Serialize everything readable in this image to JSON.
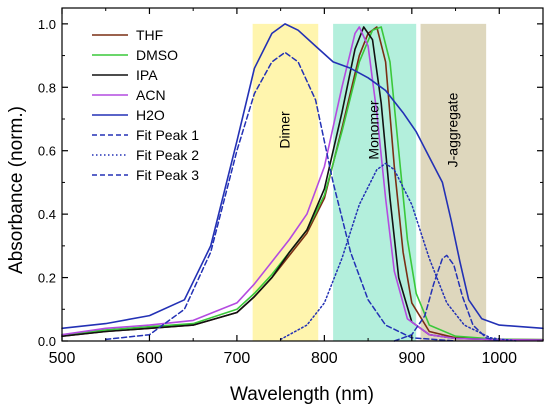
{
  "chart_data": {
    "type": "line",
    "xlabel": "Wavelength (nm)",
    "ylabel": "Absorbance (norm.)",
    "xlim": [
      500,
      1050
    ],
    "ylim": [
      0,
      1.05
    ],
    "xticks": [
      500,
      600,
      700,
      800,
      900,
      1000
    ],
    "xtick_labels": [
      "500",
      "600",
      "700",
      "800",
      "900",
      "1000"
    ],
    "yticks": [
      0,
      0.2,
      0.4,
      0.6,
      0.8,
      1.0
    ],
    "ytick_labels": [
      "0.0",
      "0.2",
      "0.4",
      "0.6",
      "0.8",
      "1.0"
    ],
    "grid": false,
    "legend_position": "top-left",
    "regions": [
      {
        "label": "Dimer",
        "x_range": [
          718,
          793
        ],
        "color": "#fff3a0"
      },
      {
        "label": "Monomer",
        "x_range": [
          810,
          905
        ],
        "color": "#a6ecd6"
      },
      {
        "label": "J-aggregate",
        "x_range": [
          910,
          985
        ],
        "color": "#d8d0b2"
      }
    ],
    "series": [
      {
        "name": "THF",
        "color": "#7a2e14",
        "dash": "solid",
        "points": [
          [
            500,
            0.015
          ],
          [
            550,
            0.03
          ],
          [
            600,
            0.04
          ],
          [
            650,
            0.05
          ],
          [
            700,
            0.09
          ],
          [
            720,
            0.14
          ],
          [
            740,
            0.2
          ],
          [
            760,
            0.27
          ],
          [
            780,
            0.34
          ],
          [
            800,
            0.45
          ],
          [
            820,
            0.67
          ],
          [
            840,
            0.9
          ],
          [
            850,
            0.97
          ],
          [
            860,
            0.99
          ],
          [
            870,
            0.88
          ],
          [
            880,
            0.55
          ],
          [
            890,
            0.28
          ],
          [
            900,
            0.12
          ],
          [
            920,
            0.03
          ],
          [
            950,
            0.01
          ],
          [
            1000,
            0.005
          ],
          [
            1050,
            0.004
          ]
        ]
      },
      {
        "name": "DMSO",
        "color": "#3ac83a",
        "dash": "solid",
        "points": [
          [
            500,
            0.02
          ],
          [
            550,
            0.035
          ],
          [
            600,
            0.045
          ],
          [
            650,
            0.055
          ],
          [
            700,
            0.1
          ],
          [
            720,
            0.15
          ],
          [
            740,
            0.21
          ],
          [
            760,
            0.28
          ],
          [
            780,
            0.35
          ],
          [
            800,
            0.46
          ],
          [
            820,
            0.66
          ],
          [
            840,
            0.88
          ],
          [
            855,
            0.98
          ],
          [
            865,
            0.99
          ],
          [
            875,
            0.88
          ],
          [
            885,
            0.6
          ],
          [
            895,
            0.32
          ],
          [
            905,
            0.15
          ],
          [
            920,
            0.05
          ],
          [
            950,
            0.015
          ],
          [
            1000,
            0.005
          ],
          [
            1050,
            0.004
          ]
        ]
      },
      {
        "name": "IPA",
        "color": "#111111",
        "dash": "solid",
        "points": [
          [
            500,
            0.015
          ],
          [
            550,
            0.03
          ],
          [
            600,
            0.04
          ],
          [
            650,
            0.05
          ],
          [
            700,
            0.09
          ],
          [
            720,
            0.14
          ],
          [
            740,
            0.2
          ],
          [
            760,
            0.28
          ],
          [
            780,
            0.35
          ],
          [
            800,
            0.48
          ],
          [
            820,
            0.72
          ],
          [
            835,
            0.92
          ],
          [
            845,
            0.99
          ],
          [
            855,
            0.95
          ],
          [
            865,
            0.75
          ],
          [
            875,
            0.45
          ],
          [
            885,
            0.2
          ],
          [
            900,
            0.06
          ],
          [
            920,
            0.02
          ],
          [
            950,
            0.008
          ],
          [
            1000,
            0.004
          ],
          [
            1050,
            0.003
          ]
        ]
      },
      {
        "name": "ACN",
        "color": "#b44be0",
        "dash": "solid",
        "points": [
          [
            500,
            0.02
          ],
          [
            550,
            0.04
          ],
          [
            600,
            0.05
          ],
          [
            650,
            0.065
          ],
          [
            700,
            0.12
          ],
          [
            720,
            0.18
          ],
          [
            740,
            0.25
          ],
          [
            760,
            0.32
          ],
          [
            780,
            0.4
          ],
          [
            800,
            0.55
          ],
          [
            820,
            0.8
          ],
          [
            835,
            0.97
          ],
          [
            840,
            0.99
          ],
          [
            850,
            0.93
          ],
          [
            860,
            0.72
          ],
          [
            870,
            0.45
          ],
          [
            880,
            0.22
          ],
          [
            895,
            0.07
          ],
          [
            920,
            0.02
          ],
          [
            950,
            0.008
          ],
          [
            1000,
            0.004
          ],
          [
            1050,
            0.003
          ]
        ]
      },
      {
        "name": "H2O",
        "color": "#2331b5",
        "dash": "solid",
        "points": [
          [
            500,
            0.04
          ],
          [
            550,
            0.055
          ],
          [
            600,
            0.08
          ],
          [
            640,
            0.13
          ],
          [
            670,
            0.3
          ],
          [
            700,
            0.63
          ],
          [
            720,
            0.86
          ],
          [
            740,
            0.97
          ],
          [
            755,
            1.0
          ],
          [
            770,
            0.98
          ],
          [
            790,
            0.93
          ],
          [
            810,
            0.88
          ],
          [
            830,
            0.86
          ],
          [
            850,
            0.83
          ],
          [
            870,
            0.79
          ],
          [
            890,
            0.72
          ],
          [
            905,
            0.66
          ],
          [
            920,
            0.58
          ],
          [
            935,
            0.5
          ],
          [
            945,
            0.38
          ],
          [
            955,
            0.25
          ],
          [
            965,
            0.13
          ],
          [
            980,
            0.07
          ],
          [
            1000,
            0.05
          ],
          [
            1050,
            0.04
          ]
        ]
      },
      {
        "name": "Fit Peak 1",
        "color": "#2331b5",
        "dash": "dashed",
        "points": [
          [
            550,
            0.005
          ],
          [
            600,
            0.02
          ],
          [
            640,
            0.1
          ],
          [
            670,
            0.28
          ],
          [
            700,
            0.6
          ],
          [
            720,
            0.78
          ],
          [
            740,
            0.88
          ],
          [
            755,
            0.91
          ],
          [
            770,
            0.88
          ],
          [
            790,
            0.76
          ],
          [
            810,
            0.5
          ],
          [
            830,
            0.28
          ],
          [
            850,
            0.13
          ],
          [
            870,
            0.05
          ],
          [
            900,
            0.01
          ],
          [
            950,
            0.0
          ]
        ]
      },
      {
        "name": "Fit Peak 2",
        "color": "#2331b5",
        "dash": "dotted",
        "points": [
          [
            750,
            0.005
          ],
          [
            780,
            0.05
          ],
          [
            800,
            0.12
          ],
          [
            820,
            0.26
          ],
          [
            840,
            0.43
          ],
          [
            860,
            0.54
          ],
          [
            870,
            0.56
          ],
          [
            880,
            0.54
          ],
          [
            900,
            0.43
          ],
          [
            920,
            0.26
          ],
          [
            940,
            0.12
          ],
          [
            960,
            0.05
          ],
          [
            990,
            0.01
          ],
          [
            1020,
            0.0
          ]
        ]
      },
      {
        "name": "Fit Peak 3",
        "color": "#2331b5",
        "dash": "dashed",
        "points": [
          [
            880,
            0.0
          ],
          [
            900,
            0.02
          ],
          [
            915,
            0.08
          ],
          [
            925,
            0.18
          ],
          [
            935,
            0.26
          ],
          [
            940,
            0.27
          ],
          [
            948,
            0.24
          ],
          [
            958,
            0.14
          ],
          [
            970,
            0.05
          ],
          [
            985,
            0.01
          ],
          [
            1000,
            0.0
          ]
        ]
      }
    ]
  }
}
